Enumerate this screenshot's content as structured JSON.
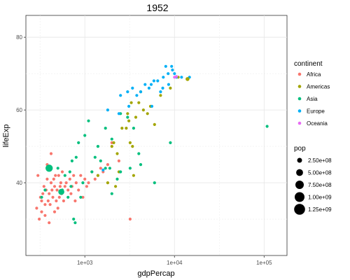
{
  "chart_data": {
    "type": "scatter",
    "title": "1952",
    "xlabel": "gdpPercap",
    "ylabel": "lifeExp",
    "x_scale": "log10",
    "xlim": [
      220,
      180000
    ],
    "ylim": [
      20,
      86
    ],
    "x_ticks": [
      {
        "value": 1000,
        "label": "1e+03"
      },
      {
        "value": 10000,
        "label": "1e+04"
      },
      {
        "value": 100000,
        "label": "1e+05"
      }
    ],
    "y_ticks": [
      {
        "value": 40,
        "label": "40"
      },
      {
        "value": 60,
        "label": "60"
      },
      {
        "value": 80,
        "label": "80"
      }
    ],
    "grid": true,
    "legend_position": "right",
    "color_legend": {
      "title": "continent",
      "entries": [
        {
          "name": "Africa",
          "color": "#F8766D"
        },
        {
          "name": "Americas",
          "color": "#A3A500"
        },
        {
          "name": "Asia",
          "color": "#00BF7D"
        },
        {
          "name": "Europe",
          "color": "#00B0F6"
        },
        {
          "name": "Oceania",
          "color": "#E76BF3"
        }
      ]
    },
    "size_legend": {
      "title": "pop",
      "entries": [
        {
          "label": "2.50e+08",
          "value": 250000000
        },
        {
          "label": "5.00e+08",
          "value": 500000000
        },
        {
          "label": "7.50e+08",
          "value": 750000000
        },
        {
          "label": "1.00e+09",
          "value": 1000000000
        },
        {
          "label": "1.25e+09",
          "value": 1250000000
        }
      ]
    },
    "series": [
      {
        "continent": "Africa",
        "points": [
          [
            300,
            42
          ],
          [
            320,
            36
          ],
          [
            330,
            32
          ],
          [
            340,
            37
          ],
          [
            350,
            39
          ],
          [
            360,
            34
          ],
          [
            370,
            38
          ],
          [
            380,
            41
          ],
          [
            390,
            35
          ],
          [
            400,
            37
          ],
          [
            410,
            34
          ],
          [
            420,
            40
          ],
          [
            430,
            38
          ],
          [
            440,
            36
          ],
          [
            450,
            41
          ],
          [
            460,
            39
          ],
          [
            470,
            42
          ],
          [
            480,
            35
          ],
          [
            490,
            38
          ],
          [
            500,
            33
          ],
          [
            510,
            42
          ],
          [
            520,
            36
          ],
          [
            530,
            39
          ],
          [
            540,
            40
          ],
          [
            550,
            37
          ],
          [
            560,
            43
          ],
          [
            580,
            35
          ],
          [
            600,
            39
          ],
          [
            620,
            40
          ],
          [
            650,
            38
          ],
          [
            680,
            41
          ],
          [
            700,
            37
          ],
          [
            720,
            39
          ],
          [
            750,
            42
          ],
          [
            780,
            35
          ],
          [
            800,
            40
          ],
          [
            850,
            38
          ],
          [
            900,
            42
          ],
          [
            950,
            36
          ],
          [
            1000,
            41
          ],
          [
            1050,
            39
          ],
          [
            1100,
            40
          ],
          [
            1200,
            43
          ],
          [
            1300,
            41
          ],
          [
            1400,
            42
          ],
          [
            1500,
            44
          ],
          [
            1600,
            43
          ],
          [
            1800,
            45
          ],
          [
            2000,
            51
          ],
          [
            2400,
            46
          ],
          [
            330,
            35
          ],
          [
            310,
            30
          ],
          [
            360,
            31
          ],
          [
            290,
            33
          ],
          [
            400,
            29
          ],
          [
            460,
            32
          ],
          [
            380,
            45
          ],
          [
            420,
            48
          ],
          [
            3200,
            30
          ]
        ]
      },
      {
        "continent": "Americas",
        "points": [
          [
            1400,
            42
          ],
          [
            1800,
            40
          ],
          [
            2000,
            50
          ],
          [
            2100,
            51
          ],
          [
            2200,
            39
          ],
          [
            2300,
            48
          ],
          [
            2400,
            43
          ],
          [
            2600,
            55
          ],
          [
            2900,
            55
          ],
          [
            3000,
            59
          ],
          [
            3100,
            57
          ],
          [
            3200,
            51
          ],
          [
            3300,
            62
          ],
          [
            3400,
            50
          ],
          [
            3500,
            42
          ],
          [
            3700,
            58
          ],
          [
            4000,
            62
          ],
          [
            4200,
            65
          ],
          [
            4500,
            60
          ],
          [
            5000,
            59
          ],
          [
            5400,
            61
          ],
          [
            6000,
            56
          ],
          [
            7000,
            64
          ],
          [
            9000,
            66
          ],
          [
            11000,
            69
          ],
          [
            14000,
            68.5
          ]
        ]
      },
      {
        "continent": "Asia",
        "points": [
          [
            330,
            36
          ],
          [
            360,
            38
          ],
          [
            400,
            44
          ],
          [
            500,
            44
          ],
          [
            540,
            37.5
          ],
          [
            560,
            38
          ],
          [
            600,
            42
          ],
          [
            650,
            36
          ],
          [
            680,
            43
          ],
          [
            700,
            39
          ],
          [
            720,
            46
          ],
          [
            750,
            30
          ],
          [
            780,
            29
          ],
          [
            800,
            47
          ],
          [
            850,
            51
          ],
          [
            900,
            36
          ],
          [
            950,
            40
          ],
          [
            1000,
            53
          ],
          [
            1100,
            57
          ],
          [
            1200,
            43
          ],
          [
            1300,
            47
          ],
          [
            1400,
            50
          ],
          [
            1500,
            46
          ],
          [
            1700,
            55
          ],
          [
            1900,
            44
          ],
          [
            2000,
            52
          ],
          [
            2300,
            41
          ],
          [
            2500,
            59
          ],
          [
            3000,
            58
          ],
          [
            3200,
            44
          ],
          [
            3500,
            55
          ],
          [
            4000,
            48
          ],
          [
            4200,
            45
          ],
          [
            6000,
            40
          ],
          [
            9000,
            51
          ],
          [
            108000,
            55.5
          ],
          [
            1700,
            44
          ],
          [
            2000,
            37
          ],
          [
            2500,
            43
          ]
        ]
      },
      {
        "continent": "Europe",
        "points": [
          [
            1600,
            43.5
          ],
          [
            1800,
            60
          ],
          [
            2400,
            59
          ],
          [
            2500,
            64
          ],
          [
            3000,
            65
          ],
          [
            3100,
            61
          ],
          [
            3400,
            66
          ],
          [
            3800,
            64
          ],
          [
            4200,
            65
          ],
          [
            4700,
            67
          ],
          [
            5200,
            66
          ],
          [
            5500,
            67
          ],
          [
            5900,
            68
          ],
          [
            6500,
            68
          ],
          [
            7000,
            65
          ],
          [
            7500,
            69
          ],
          [
            8000,
            72
          ],
          [
            8500,
            70
          ],
          [
            9500,
            71
          ],
          [
            10000,
            70
          ],
          [
            10500,
            69
          ],
          [
            8600,
            67
          ],
          [
            12000,
            69
          ],
          [
            14700,
            69
          ],
          [
            5600,
            61
          ],
          [
            7400,
            66
          ],
          [
            9300,
            72
          ]
        ]
      },
      {
        "continent": "Oceania",
        "points": [
          [
            10000,
            69
          ],
          [
            10500,
            69.2
          ]
        ]
      }
    ],
    "large_points": [
      {
        "continent": "Asia",
        "x": 400,
        "y": 44,
        "pop": 556000000
      },
      {
        "continent": "Asia",
        "x": 546,
        "y": 37.5,
        "pop": 372000000
      },
      {
        "continent": "Americas",
        "x": 13990,
        "y": 68.5,
        "pop": 157000000
      }
    ]
  }
}
